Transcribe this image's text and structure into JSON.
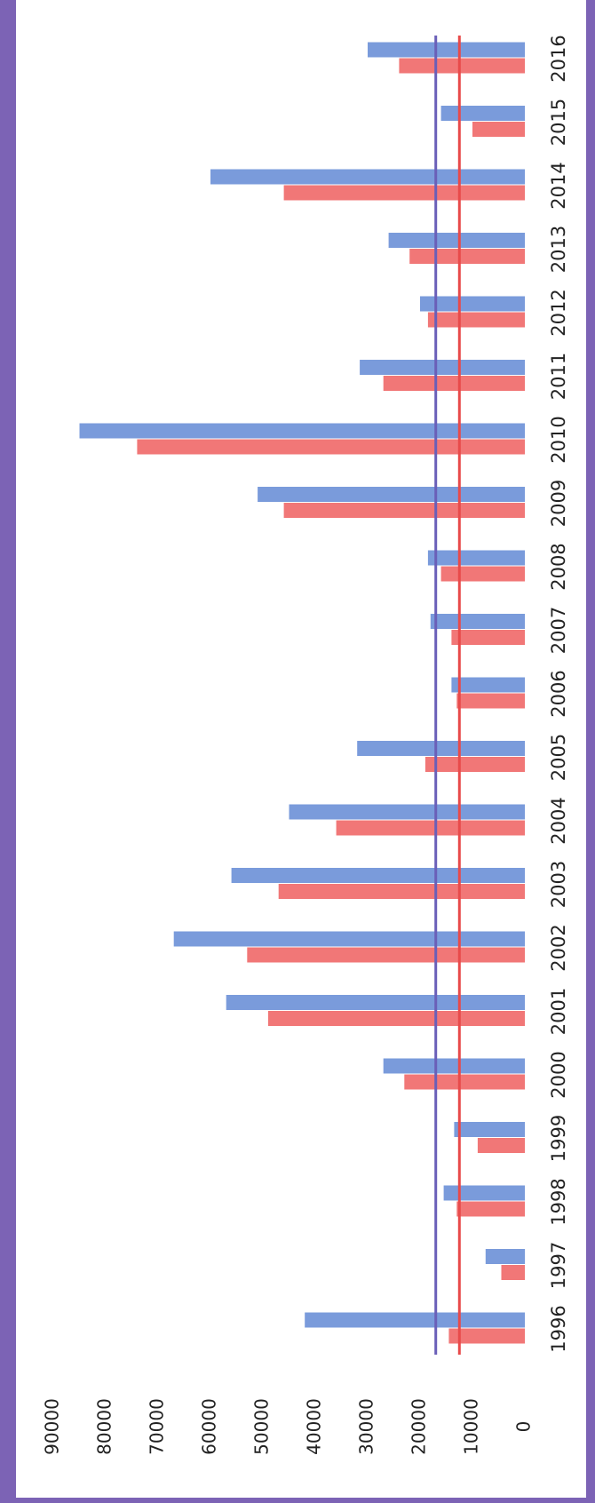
{
  "chart_data": {
    "type": "bar",
    "orientation": "rotated",
    "categories": [
      "1996",
      "1997",
      "1998",
      "1999",
      "2000",
      "2001",
      "2002",
      "2003",
      "2004",
      "2005",
      "2006",
      "2007",
      "2008",
      "2009",
      "2010",
      "2011",
      "2012",
      "2013",
      "2014",
      "2015",
      "2016"
    ],
    "series": [
      {
        "values": [
          14500,
          4500,
          13000,
          9000,
          23000,
          49000,
          53000,
          47000,
          36000,
          19000,
          13000,
          14000,
          16000,
          46000,
          74000,
          27000,
          18500,
          22000,
          46000,
          10000,
          24000
        ]
      },
      {
        "values": [
          42000,
          7500,
          15500,
          13500,
          27000,
          57000,
          67000,
          56000,
          45000,
          32000,
          14000,
          18000,
          18500,
          51000,
          85000,
          31500,
          20000,
          26000,
          60000,
          16000,
          30000
        ]
      }
    ],
    "reference_lines": [
      12500,
      17000
    ],
    "ylim": [
      0,
      90000
    ],
    "yticks": [
      "90000",
      "80000",
      "70000",
      "60000",
      "50000",
      "40000",
      "30000",
      "20000",
      "10000",
      "0"
    ],
    "grid": false,
    "legend": "none",
    "colors": {
      "series_1": "#f06b6b",
      "series_2": "#6f93d8",
      "ref_line_1": "#e84a4a",
      "ref_line_2": "#6a5fb8",
      "frame": "#7c63b5"
    }
  }
}
